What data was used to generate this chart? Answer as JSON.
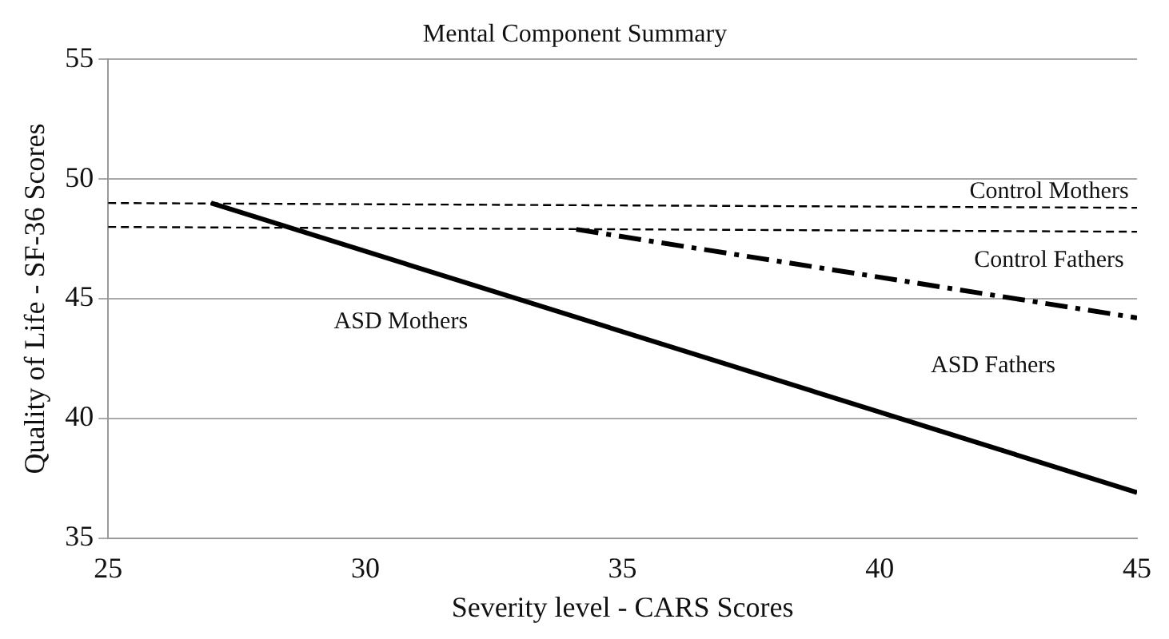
{
  "chart_data": {
    "type": "line",
    "title": "Mental Component Summary",
    "xlabel": "Severity level - CARS Scores",
    "ylabel": "Quality of Life - SF-36 Scores",
    "xlim": [
      25,
      45
    ],
    "xticks": [
      25,
      30,
      35,
      40,
      45
    ],
    "ylim": [
      35,
      55
    ],
    "yticks": [
      35,
      40,
      45,
      50,
      55
    ],
    "grid": "y",
    "legend": false,
    "marker": "none",
    "series": [
      {
        "name": "Control Mothers",
        "color": "#000000",
        "line_style": "dashed",
        "x": [
          25,
          45
        ],
        "values": [
          49,
          48.8
        ]
      },
      {
        "name": "Control Fathers",
        "color": "#000000",
        "line_style": "dashed",
        "x": [
          25,
          45
        ],
        "values": [
          48,
          47.8
        ]
      },
      {
        "name": "ASD Mothers",
        "color": "#000000",
        "line_style": "solid",
        "x": [
          27,
          45
        ],
        "values": [
          49,
          36.9
        ]
      },
      {
        "name": "ASD Fathers",
        "color": "#000000",
        "line_style": "dashed",
        "x": [
          34.1,
          45
        ],
        "values": [
          47.9,
          44.2
        ]
      }
    ]
  }
}
